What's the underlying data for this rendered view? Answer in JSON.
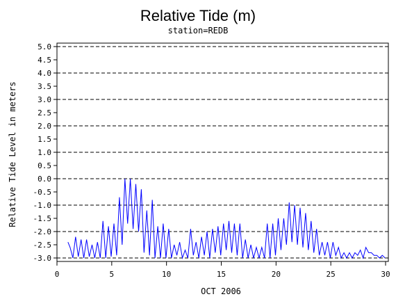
{
  "chart_data": {
    "type": "line",
    "title": "Relative Tide (m)",
    "subtitle": "station=REDB",
    "xlabel": "OCT 2006",
    "ylabel": "Relative Tide Level in meters",
    "xlim": [
      0,
      30
    ],
    "ylim": [
      -3.0,
      5.0
    ],
    "x_ticks": [
      0,
      5,
      10,
      15,
      20,
      25,
      30
    ],
    "y_ticks": [
      -3.0,
      -2.5,
      -2.0,
      -1.5,
      -1.0,
      -0.5,
      0.0,
      0.5,
      1.0,
      1.5,
      2.0,
      2.5,
      3.0,
      3.5,
      4.0,
      4.5,
      5.0
    ],
    "x_tick_labels": [
      "0",
      "5",
      "10",
      "15",
      "20",
      "25",
      "30"
    ],
    "y_tick_labels": [
      "-3.0",
      "-2.5",
      "-2.0",
      "-1.5",
      "-1.0",
      "-0.5",
      "0.0",
      "0.5",
      "1.0",
      "1.5",
      "2.0",
      "2.5",
      "3.0",
      "3.5",
      "4.0",
      "4.5",
      "5.0"
    ],
    "gridlines_at": [
      -3.0,
      -2.0,
      -1.0,
      0.0,
      1.0,
      2.0,
      3.0,
      4.0,
      5.0
    ],
    "grid_style": "dashed horizontal",
    "line_color": "#0000ff",
    "series": [
      {
        "x": [
          1.0,
          1.2,
          1.45,
          1.7,
          1.95,
          2.2,
          2.45,
          2.7,
          2.95,
          3.2,
          3.45,
          3.7,
          3.95,
          4.2,
          4.45,
          4.7,
          4.95,
          5.2,
          5.45,
          5.7,
          5.95,
          6.2,
          6.45,
          6.7,
          6.95,
          7.2,
          7.45,
          7.7,
          7.95,
          8.2,
          8.45,
          8.7,
          8.95,
          9.2,
          9.45,
          9.7,
          9.95,
          10.2,
          10.45,
          10.7,
          10.95,
          11.2,
          11.45,
          11.7,
          11.95,
          12.2,
          12.45,
          12.7,
          12.95,
          13.2,
          13.45,
          13.7,
          13.95,
          14.2,
          14.45,
          14.7,
          14.95,
          15.2,
          15.45,
          15.7,
          15.95,
          16.2,
          16.45,
          16.7,
          16.95,
          17.2,
          17.45,
          17.7,
          17.95,
          18.2,
          18.45,
          18.7,
          18.95,
          19.2,
          19.45,
          19.7,
          19.95,
          20.2,
          20.45,
          20.7,
          20.95,
          21.2,
          21.45,
          21.7,
          21.95,
          22.2,
          22.45,
          22.7,
          22.95,
          23.2,
          23.45,
          23.7,
          23.95,
          24.2,
          24.45,
          24.7,
          24.95,
          25.2,
          25.45,
          25.7,
          25.95,
          26.2,
          26.45,
          26.7,
          26.95,
          27.2,
          27.45,
          27.7,
          27.95,
          28.2,
          28.45,
          28.7,
          28.95,
          29.2,
          29.45,
          29.7,
          29.95
        ],
        "y": [
          -2.4,
          -2.6,
          -3.0,
          -2.2,
          -2.95,
          -2.3,
          -3.0,
          -2.3,
          -2.95,
          -2.5,
          -3.0,
          -2.4,
          -3.0,
          -1.6,
          -3.0,
          -1.8,
          -2.95,
          -1.7,
          -2.9,
          -0.7,
          -2.5,
          0.0,
          -1.7,
          0.0,
          -1.9,
          -0.2,
          -2.0,
          -0.4,
          -2.8,
          -1.2,
          -2.9,
          -0.8,
          -3.0,
          -1.8,
          -3.0,
          -1.7,
          -3.0,
          -1.9,
          -3.0,
          -2.5,
          -2.9,
          -2.4,
          -3.0,
          -2.7,
          -3.0,
          -1.9,
          -2.9,
          -2.4,
          -3.0,
          -2.2,
          -2.9,
          -2.0,
          -3.0,
          -1.9,
          -2.8,
          -1.8,
          -2.9,
          -1.7,
          -2.7,
          -1.6,
          -2.8,
          -1.7,
          -2.9,
          -1.7,
          -3.0,
          -2.3,
          -3.0,
          -2.5,
          -3.0,
          -2.6,
          -3.0,
          -2.6,
          -3.0,
          -1.7,
          -3.0,
          -1.7,
          -2.9,
          -1.5,
          -2.7,
          -1.5,
          -2.5,
          -0.9,
          -2.4,
          -1.0,
          -2.5,
          -1.1,
          -2.6,
          -1.3,
          -2.7,
          -1.6,
          -2.8,
          -1.9,
          -2.9,
          -2.4,
          -2.9,
          -2.4,
          -3.0,
          -2.4,
          -2.9,
          -2.6,
          -3.0,
          -2.8,
          -3.0,
          -2.8,
          -3.0,
          -2.8,
          -2.9,
          -2.7,
          -3.0,
          -2.6,
          -2.8,
          -2.8,
          -2.9,
          -2.9,
          -3.0,
          -2.9,
          -3.0
        ],
        "note": ""
      }
    ]
  }
}
